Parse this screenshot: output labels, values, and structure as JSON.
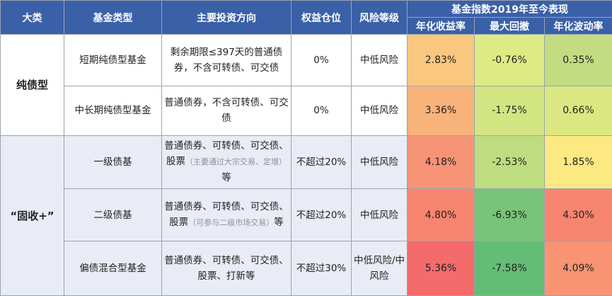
{
  "headers": {
    "category": "大类",
    "fund_type": "基金类型",
    "direction": "主要投资方向",
    "equity": "权益仓位",
    "risk": "风险等级",
    "perf_group": "基金指数2019年至今表现",
    "ann_return": "年化收益率",
    "max_drawdown": "最大回撤",
    "ann_vol": "年化波动率"
  },
  "categories": [
    "纯债型",
    "“固收+”"
  ],
  "rows": [
    {
      "fund_type": "短期纯债型基金",
      "direction": "剩余期限≤397天的普通债券，不含可转债、可交债",
      "direction_note": "",
      "direction_tail": "",
      "equity": "0%",
      "risk": "中低风险",
      "ann_return": "2.83%",
      "ann_return_color": "#f9c87e",
      "max_drawdown": "-0.76%",
      "max_drawdown_color": "#ddeb84",
      "ann_vol": "0.35%",
      "ann_vol_color": "#c3dc81"
    },
    {
      "fund_type": "中长期纯债型基金",
      "direction": "普通债券，不含可转债、可交债",
      "direction_note": "",
      "direction_tail": "",
      "equity": "0%",
      "risk": "中低风险",
      "ann_return": "3.36%",
      "ann_return_color": "#f8b37a",
      "max_drawdown": "-1.75%",
      "max_drawdown_color": "#d2e582",
      "ann_vol": "0.66%",
      "ann_vol_color": "#dbe882"
    },
    {
      "fund_type": "一级债基",
      "direction": "普通债券、可转债、可交债、股票",
      "direction_note": "（主要通过大宗交易、定增）",
      "direction_tail": "等",
      "equity": "不超过20%",
      "risk": "中低风险",
      "ann_return": "4.18%",
      "ann_return_color": "#f69475",
      "max_drawdown": "-2.53%",
      "max_drawdown_color": "#bedc80",
      "ann_vol": "1.85%",
      "ann_vol_color": "#fde982"
    },
    {
      "fund_type": "二级债基",
      "direction": "普通债券、可转债、可交债、股票",
      "direction_note": "（可参与二级市场交易）",
      "direction_tail": "等",
      "equity": "不超过20%",
      "risk": "中低风险",
      "ann_return": "4.80%",
      "ann_return_color": "#f6846f",
      "max_drawdown": "-6.93%",
      "max_drawdown_color": "#78c478",
      "ann_vol": "4.30%",
      "ann_vol_color": "#f8856f"
    },
    {
      "fund_type": "偏债混合型基金",
      "direction": "普通债券、可转债、可交债、股票、打新等",
      "direction_note": "",
      "direction_tail": "",
      "equity": "不超过30%",
      "risk": "中低风险/中风险",
      "ann_return": "5.36%",
      "ann_return_color": "#f46b6b",
      "max_drawdown": "-7.58%",
      "max_drawdown_color": "#64bd76",
      "ann_vol": "4.09%",
      "ann_vol_color": "#f89474"
    }
  ]
}
